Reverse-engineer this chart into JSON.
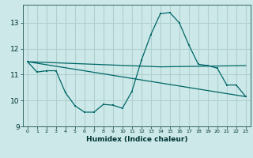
{
  "xlabel": "Humidex (Indice chaleur)",
  "ylabel": "",
  "bg_color": "#cce8e8",
  "grid_color": "#b0d0d0",
  "line_color": "#006666",
  "xlim": [
    -0.5,
    23.5
  ],
  "ylim": [
    9.0,
    13.7
  ],
  "yticks": [
    9,
    10,
    11,
    12,
    13
  ],
  "xticks": [
    0,
    1,
    2,
    3,
    4,
    5,
    6,
    7,
    8,
    9,
    10,
    11,
    12,
    13,
    14,
    15,
    16,
    17,
    18,
    19,
    20,
    21,
    22,
    23
  ],
  "series1_x": [
    0,
    1,
    2,
    3,
    4,
    5,
    6,
    7,
    8,
    9,
    10,
    11,
    12,
    13,
    14,
    15,
    16,
    17,
    18,
    19,
    20,
    21,
    22,
    23
  ],
  "series1_y": [
    11.5,
    11.1,
    11.15,
    11.15,
    10.3,
    9.8,
    9.55,
    9.55,
    9.85,
    9.82,
    9.7,
    10.35,
    11.55,
    12.55,
    13.35,
    13.4,
    13.0,
    12.15,
    11.4,
    11.35,
    11.25,
    10.6,
    10.6,
    10.15
  ],
  "series2_x": [
    0,
    23
  ],
  "series2_y": [
    11.5,
    10.15
  ],
  "series3_x": [
    0,
    14,
    23
  ],
  "series3_y": [
    11.5,
    11.3,
    11.35
  ],
  "marker_size": 2.0,
  "line_width": 0.9
}
